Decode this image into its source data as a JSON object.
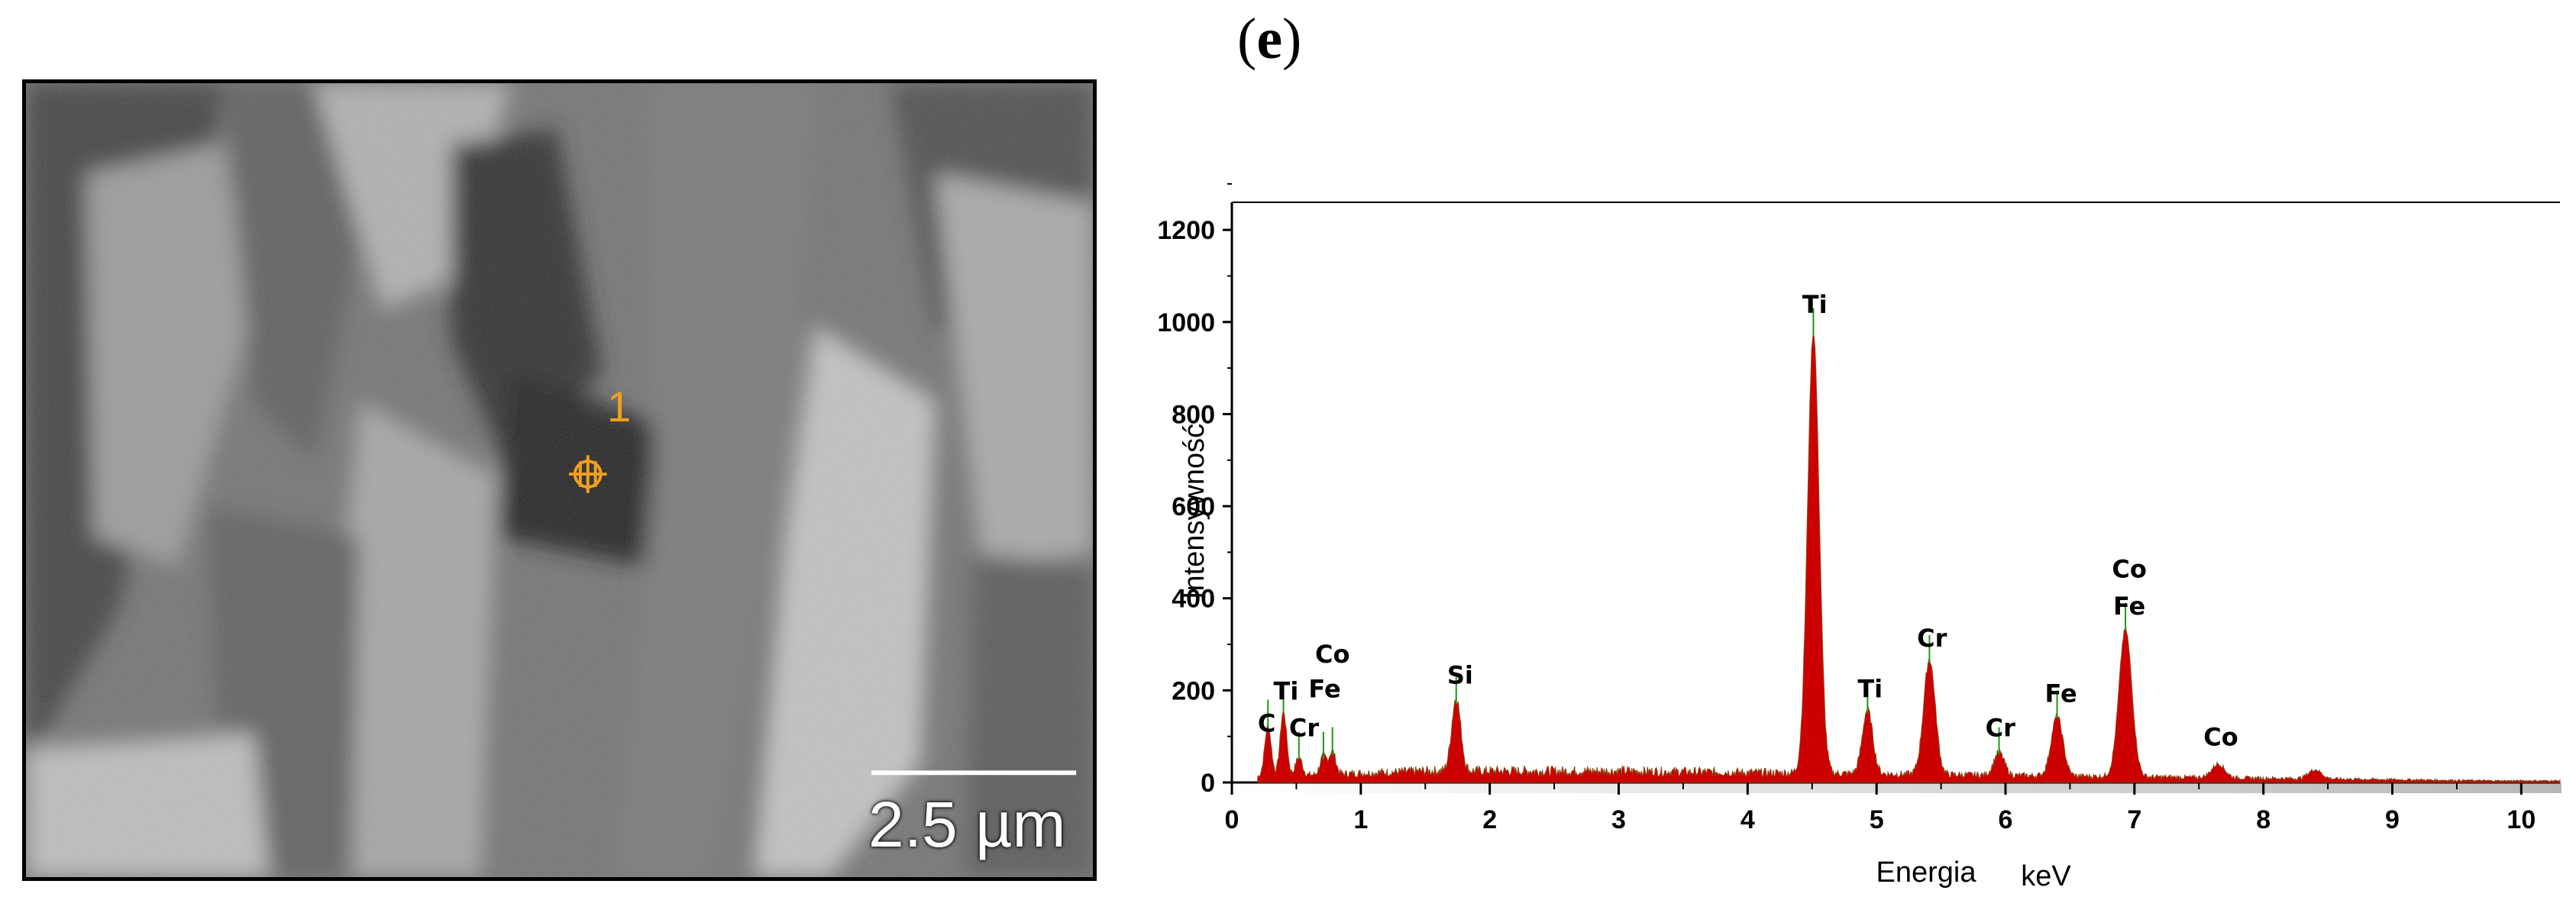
{
  "panel_label": {
    "open": "(",
    "letter": "e",
    "close": ")"
  },
  "sem_image": {
    "scale_bar_label": "2.5 µm",
    "marker_label": "1",
    "marker_color": "#f0a020"
  },
  "chart_data": {
    "type": "area",
    "xlabel": "Energia",
    "xunit": "keV",
    "ylabel": "Intensywność",
    "xlim": [
      0,
      10.3
    ],
    "ylim": [
      0,
      1260
    ],
    "x_ticks": [
      "0",
      "1",
      "2",
      "3",
      "4",
      "5",
      "6",
      "7",
      "8",
      "9",
      "10"
    ],
    "y_ticks": [
      "0",
      "200",
      "400",
      "600",
      "800",
      "1000",
      "1200"
    ],
    "series_color": "#cc0000",
    "baseline": 25,
    "peaks": [
      {
        "x": 0.28,
        "y": 110,
        "w": 0.025
      },
      {
        "x": 0.4,
        "y": 140,
        "w": 0.025
      },
      {
        "x": 0.52,
        "y": 40,
        "w": 0.025
      },
      {
        "x": 0.71,
        "y": 40,
        "w": 0.025
      },
      {
        "x": 0.78,
        "y": 50,
        "w": 0.025
      },
      {
        "x": 1.74,
        "y": 160,
        "w": 0.035
      },
      {
        "x": 4.51,
        "y": 960,
        "w": 0.045
      },
      {
        "x": 4.93,
        "y": 140,
        "w": 0.04
      },
      {
        "x": 5.41,
        "y": 250,
        "w": 0.045
      },
      {
        "x": 5.95,
        "y": 50,
        "w": 0.04
      },
      {
        "x": 6.4,
        "y": 130,
        "w": 0.045
      },
      {
        "x": 6.93,
        "y": 320,
        "w": 0.05
      },
      {
        "x": 7.65,
        "y": 30,
        "w": 0.05
      },
      {
        "x": 8.4,
        "y": 20,
        "w": 0.05
      }
    ],
    "peak_labels": [
      {
        "text": "C",
        "x": 0.27,
        "y": 110
      },
      {
        "text": "Ti",
        "x": 0.42,
        "y": 180
      },
      {
        "text": "Cr",
        "x": 0.56,
        "y": 100
      },
      {
        "text": "Fe",
        "x": 0.72,
        "y": 185
      },
      {
        "text": "Co",
        "x": 0.78,
        "y": 260
      },
      {
        "text": "Si",
        "x": 1.77,
        "y": 215
      },
      {
        "text": "Ti",
        "x": 4.52,
        "y": 1020
      },
      {
        "text": "Ti",
        "x": 4.95,
        "y": 185
      },
      {
        "text": "Cr",
        "x": 5.43,
        "y": 295
      },
      {
        "text": "Cr",
        "x": 5.96,
        "y": 100
      },
      {
        "text": "Fe",
        "x": 6.43,
        "y": 175
      },
      {
        "text": "Fe",
        "x": 6.96,
        "y": 365
      },
      {
        "text": "Co",
        "x": 6.96,
        "y": 445
      },
      {
        "text": "Co",
        "x": 7.67,
        "y": 80
      }
    ]
  }
}
